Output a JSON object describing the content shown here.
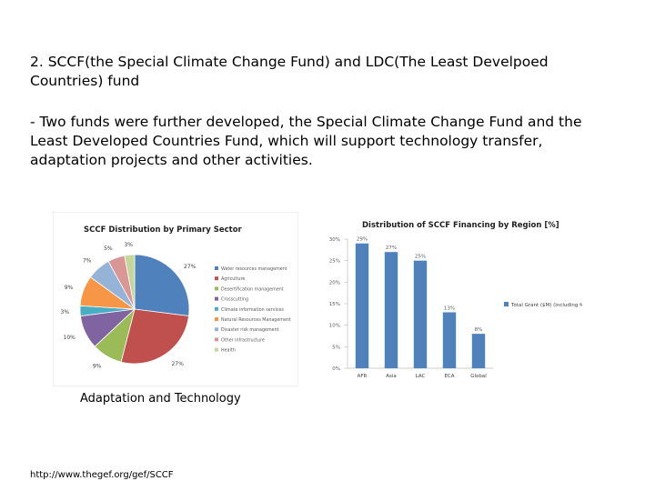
{
  "heading": "2. SCCF(the Special Climate Change Fund) and LDC(The Least Develpoed Countries) fund",
  "paragraph": "- Two funds were further developed, the Special Climate Change Fund and the Least Developed Countries Fund, which will support technology transfer, adaptation projects and other activities.",
  "caption": "Adaptation and Technology",
  "url": "http://www.thegef.org/gef/SCCF",
  "chart_data": [
    {
      "type": "pie",
      "title": "SCCF Distribution by Primary Sector",
      "slices": [
        {
          "label": "Water resources management",
          "value": 27,
          "display": "27%",
          "color": "#4f81bd"
        },
        {
          "label": "Agriculture",
          "value": 27,
          "display": "27%",
          "color": "#c0504d"
        },
        {
          "label": "Desertification management",
          "value": 9,
          "display": "9%",
          "color": "#9bbb59"
        },
        {
          "label": "Crosscutting",
          "value": 10,
          "display": "10%",
          "color": "#8064a2"
        },
        {
          "label": "Climate information services",
          "value": 3,
          "display": "3%",
          "color": "#4bacc6"
        },
        {
          "label": "Natural Resources Management",
          "value": 9,
          "display": "9%",
          "color": "#f79646"
        },
        {
          "label": "Disaster risk management",
          "value": 7,
          "display": "7%",
          "color": "#95b3d7"
        },
        {
          "label": "Other infrastructure",
          "value": 5,
          "display": "5%",
          "color": "#d99694"
        },
        {
          "label": "Health",
          "value": 3,
          "display": "3%",
          "color": "#c3d69b"
        }
      ]
    },
    {
      "type": "bar",
      "title": "Distribution of SCCF Financing by Region [%]",
      "categories": [
        "AFR",
        "Asia",
        "LAC",
        "ECA",
        "Global"
      ],
      "series": [
        {
          "name": "Total Grant ($M) (including fees) [%]",
          "values": [
            29,
            27,
            25,
            13,
            8
          ],
          "labels": [
            "29%",
            "27%",
            "25%",
            "13%",
            "8%"
          ],
          "color": "#4f81bd"
        }
      ],
      "yticks": [
        "0%",
        "5%",
        "10%",
        "15%",
        "20%",
        "25%",
        "30%"
      ],
      "ylim": [
        0,
        30
      ],
      "legend": "right"
    }
  ]
}
